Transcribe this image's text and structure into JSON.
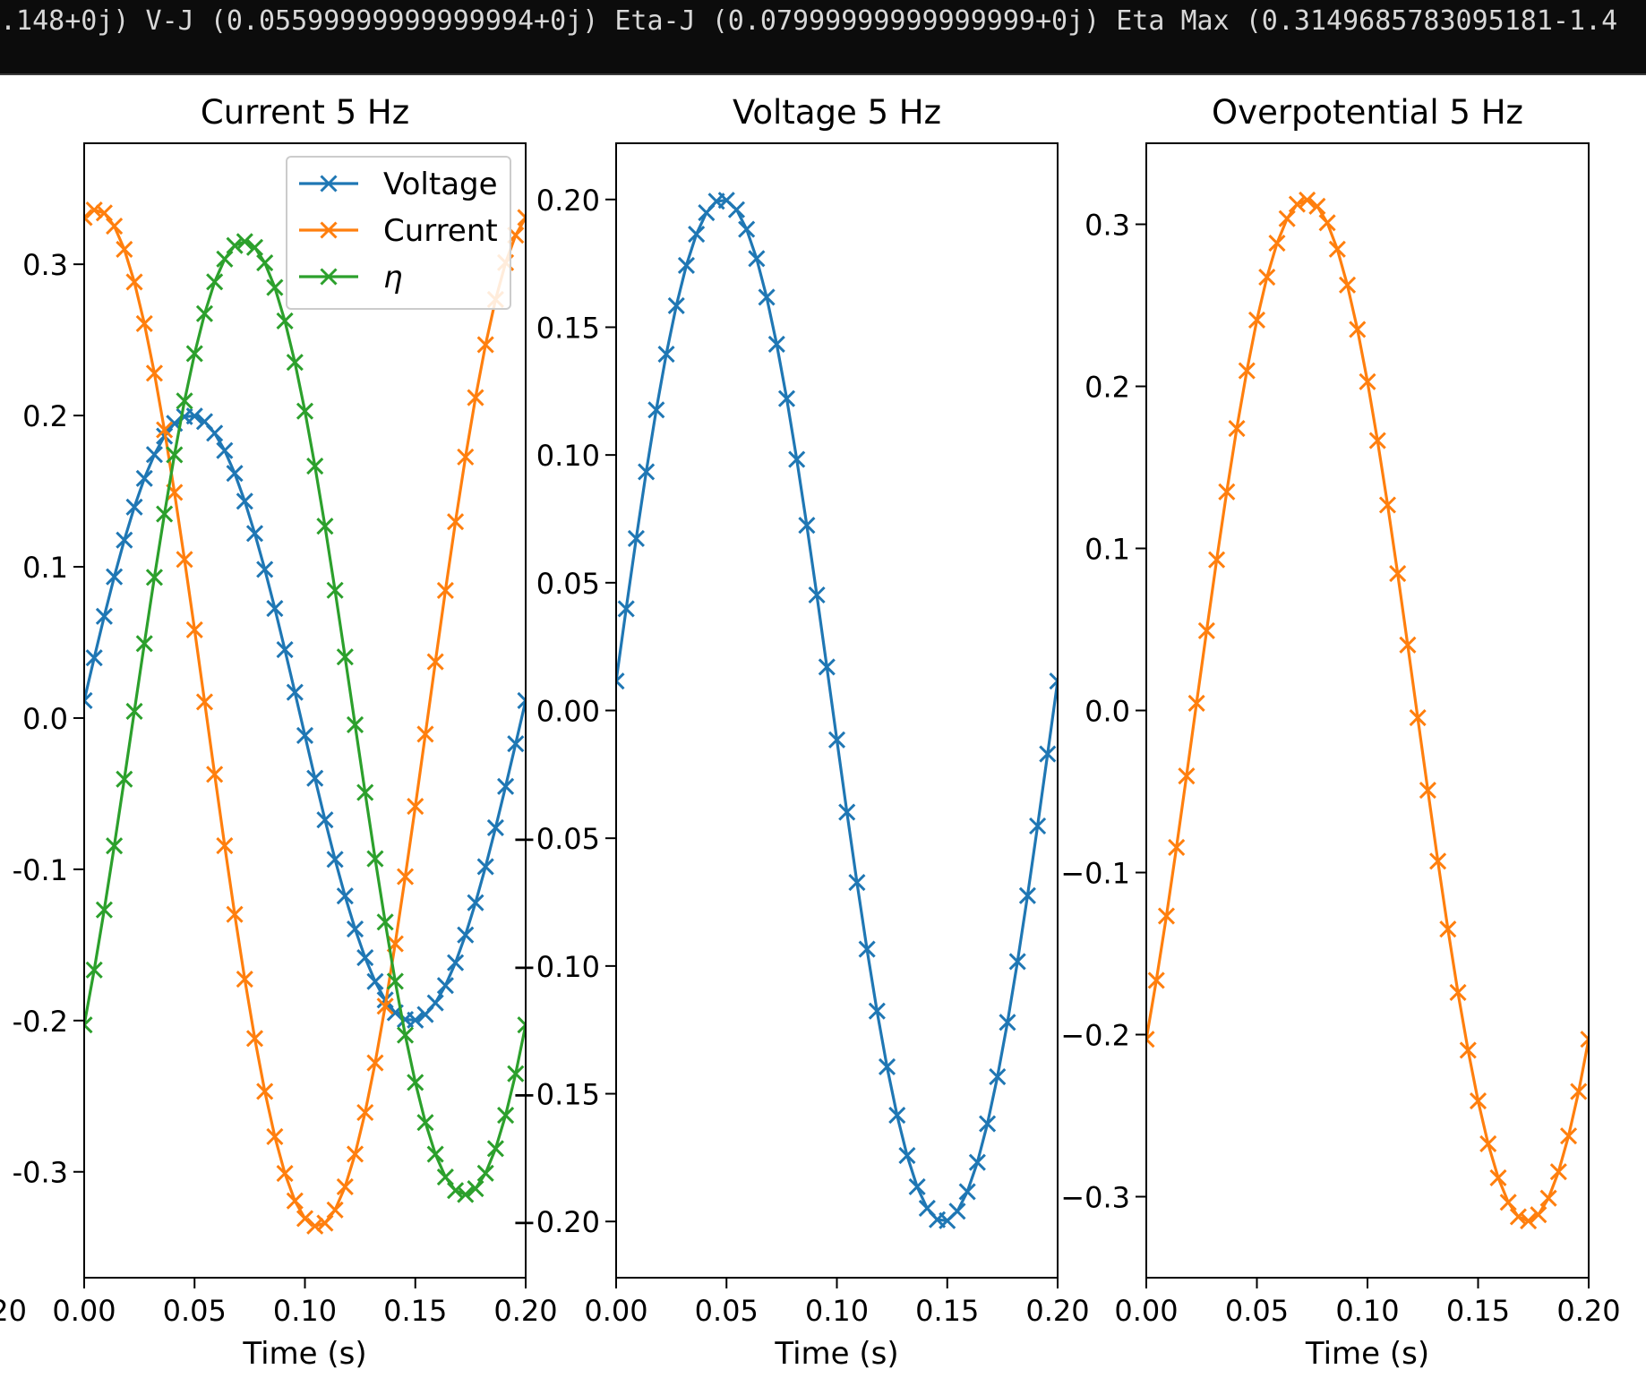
{
  "terminal": {
    "text": ".148+0j) V-J (0.05599999999999994+0j) Eta-J (0.07999999999999999+0j) Eta Max (0.3149685783095181-1.4"
  },
  "colors": {
    "voltage": "#1f77b4",
    "current": "#ff7f0e",
    "eta": "#2ca02c",
    "terminal_bg": "#0c0c0c"
  },
  "chart_data": [
    {
      "type": "line",
      "title": "Current 5 Hz",
      "xlabel": "Time (s)",
      "ylabel": "",
      "xlim": [
        0.0,
        0.2
      ],
      "ylim": [
        -0.37,
        0.38
      ],
      "xticks": [
        "0.00",
        "0.05",
        "0.10",
        "0.15",
        "0.20"
      ],
      "yticks": [
        "-0.3",
        "-0.2",
        "-0.1",
        "0.0",
        "0.1",
        "0.2",
        "0.3"
      ],
      "left_clipped_tick": "20",
      "legend": {
        "position": "top-right",
        "entries": [
          "Voltage",
          "Current",
          "η"
        ]
      },
      "marker": "x",
      "series": [
        {
          "name": "Voltage",
          "color": "#1f77b4",
          "amplitude": 0.2,
          "phase_deg": 3.3,
          "x_start": 0.0,
          "x_end": 0.2,
          "points": 45
        },
        {
          "name": "Current",
          "color": "#ff7f0e",
          "amplitude": 0.336,
          "phase_deg": 80.0,
          "x_start": 0.0,
          "x_end": 0.2,
          "points": 45
        },
        {
          "name": "η",
          "color": "#2ca02c",
          "amplitude": 0.315,
          "phase_deg": -40.1,
          "x_start": 0.0,
          "x_end": 0.2,
          "points": 45
        }
      ]
    },
    {
      "type": "line",
      "title": "Voltage 5 Hz",
      "xlabel": "Time (s)",
      "ylabel": "",
      "xlim": [
        0.0,
        0.2
      ],
      "ylim": [
        -0.222,
        0.222
      ],
      "xticks": [
        "0.00",
        "0.05",
        "0.10",
        "0.15",
        "0.20"
      ],
      "yticks": [
        "−0.20",
        "−0.15",
        "−0.10",
        "−0.05",
        "0.00",
        "0.05",
        "0.10",
        "0.15",
        "0.20"
      ],
      "marker": "x",
      "series": [
        {
          "name": "",
          "color": "#1f77b4",
          "amplitude": 0.2,
          "phase_deg": 3.3,
          "x_start": 0.0,
          "x_end": 0.2,
          "points": 45
        }
      ]
    },
    {
      "type": "line",
      "title": "Overpotential 5 Hz",
      "xlabel": "Time (s)",
      "ylabel": "",
      "xlim": [
        0.0,
        0.2
      ],
      "ylim": [
        -0.35,
        0.35
      ],
      "xticks": [
        "0.00",
        "0.05",
        "0.10",
        "0.15",
        "0.20"
      ],
      "yticks": [
        "−0.3",
        "−0.2",
        "−0.1",
        "0.0",
        "0.1",
        "0.2",
        "0.3"
      ],
      "marker": "x",
      "series": [
        {
          "name": "",
          "color": "#ff7f0e",
          "amplitude": 0.315,
          "phase_deg": -40.1,
          "x_start": 0.0,
          "x_end": 0.2,
          "points": 45
        }
      ]
    }
  ]
}
